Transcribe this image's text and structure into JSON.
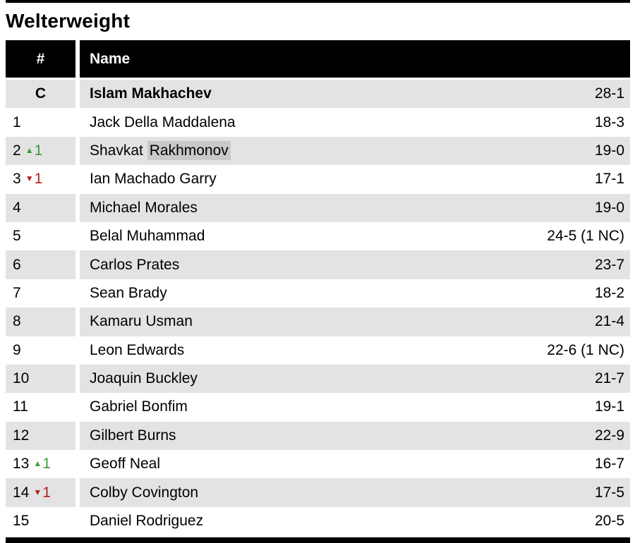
{
  "page": {
    "title": "Welterweight"
  },
  "icons": {
    "up_arrow": "▲",
    "down_arrow": "▼"
  },
  "colors": {
    "header_bg": "#000000",
    "header_text": "#ffffff",
    "row_alt_gray": "#e3e3e3",
    "search_highlight": "#c9c9c9",
    "movement_up_green": "#3d9b3d",
    "movement_down_red": "#b3231c"
  },
  "table": {
    "columns": {
      "rank": "#",
      "name": "Name"
    },
    "rows": [
      {
        "rank": "C",
        "name": "Islam Makhachev",
        "record": "28-1"
      },
      {
        "rank": "1",
        "name": "Jack Della Maddalena",
        "record": "18-3"
      },
      {
        "rank": "2",
        "name": "Shavkat Rakhmonov",
        "name_prefix": "Shavkat ",
        "name_highlight": "Rakhmonov",
        "record": "19-0",
        "movement": {
          "direction": "up",
          "delta": "1"
        }
      },
      {
        "rank": "3",
        "name": "Ian Machado Garry",
        "record": "17-1",
        "movement": {
          "direction": "down",
          "delta": "1"
        }
      },
      {
        "rank": "4",
        "name": "Michael Morales",
        "record": "19-0"
      },
      {
        "rank": "5",
        "name": "Belal Muhammad",
        "record": "24-5 (1 NC)"
      },
      {
        "rank": "6",
        "name": "Carlos Prates",
        "record": "23-7"
      },
      {
        "rank": "7",
        "name": "Sean Brady",
        "record": "18-2"
      },
      {
        "rank": "8",
        "name": "Kamaru Usman",
        "record": "21-4"
      },
      {
        "rank": "9",
        "name": "Leon Edwards",
        "record": "22-6 (1 NC)"
      },
      {
        "rank": "10",
        "name": "Joaquin Buckley",
        "record": "21-7"
      },
      {
        "rank": "11",
        "name": "Gabriel Bonfim",
        "record": "19-1"
      },
      {
        "rank": "12",
        "name": "Gilbert Burns",
        "record": "22-9"
      },
      {
        "rank": "13",
        "name": "Geoff Neal",
        "record": "16-7",
        "movement": {
          "direction": "up",
          "delta": "1"
        }
      },
      {
        "rank": "14",
        "name": "Colby Covington",
        "record": "17-5",
        "movement": {
          "direction": "down",
          "delta": "1"
        }
      },
      {
        "rank": "15",
        "name": "Daniel Rodriguez",
        "record": "20-5"
      }
    ]
  }
}
